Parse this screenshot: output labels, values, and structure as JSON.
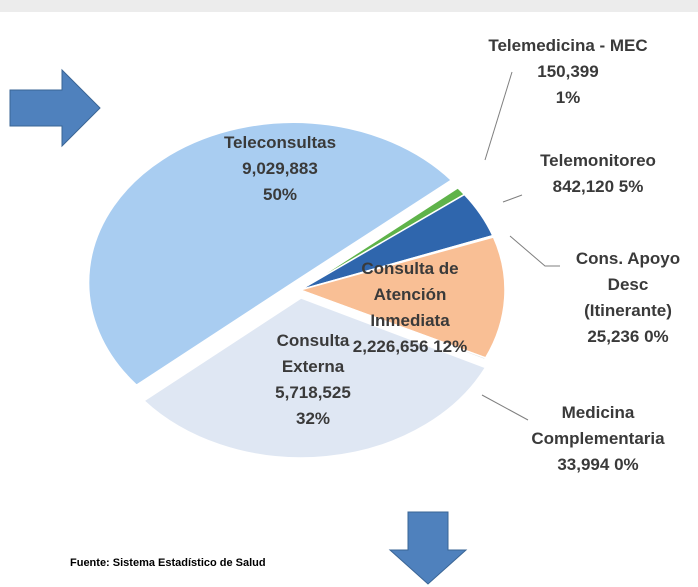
{
  "chart_data": {
    "type": "pie",
    "categories": [
      "Teleconsultas",
      "Telemedicina - MEC",
      "Telemonitoreo",
      "Cons. Apoyo Desc (Itinerante)",
      "Consulta de Atención Inmediata",
      "Medicina Complementaria",
      "Consulta Externa"
    ],
    "values": [
      9029883,
      150399,
      842120,
      25236,
      2226656,
      33994,
      5718525
    ],
    "value_labels": [
      "9,029,883",
      "150,399",
      "842,120",
      "25,236",
      "2,226,656",
      "33,994",
      "5,718,525"
    ],
    "percent_labels": [
      "50%",
      "1%",
      "5%",
      "0%",
      "12%",
      "0%",
      "32%"
    ],
    "colors": [
      "#a9cdf1",
      "#5fb34a",
      "#2f66ad",
      "#9a9a9a",
      "#f9bf95",
      "#d9d9d9",
      "#dfe7f3"
    ],
    "source": "Fuente: Sistema Estadístico de Salud"
  }
}
